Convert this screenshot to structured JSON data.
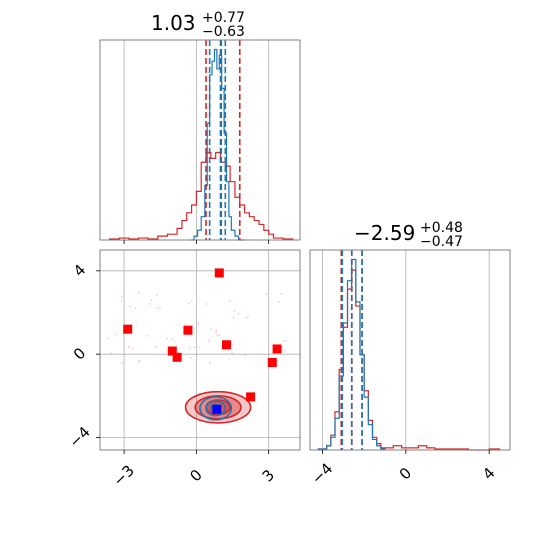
{
  "chart_data": [
    {
      "type": "histogram",
      "panel": "marginal-x",
      "title": {
        "median": "1.03",
        "plus": "+0.77",
        "minus": "−0.63"
      },
      "x_range": [
        -4.0,
        4.3
      ],
      "x_ticks": [
        -3,
        0,
        3
      ],
      "grid": true,
      "series": [
        {
          "color": "#1f77b4",
          "bin_edges": [
            -0.25,
            -0.1,
            0.05,
            0.2,
            0.35,
            0.45,
            0.55,
            0.65,
            0.75,
            0.85,
            0.95,
            1.05,
            1.15,
            1.25,
            1.35,
            1.45,
            1.6,
            1.75,
            1.9,
            2.05
          ],
          "counts": [
            0,
            0.02,
            0.05,
            0.12,
            0.28,
            0.6,
            0.85,
            0.92,
            0.98,
            0.88,
            0.95,
            0.78,
            0.55,
            0.3,
            0.12,
            0.05,
            0.02,
            0,
            0
          ],
          "quantile_lines": [
            0.55,
            1.0,
            1.2
          ]
        },
        {
          "color": "#d62728",
          "bin_edges": [
            -3.6,
            -3.2,
            -2.8,
            -2.4,
            -2.0,
            -1.6,
            -1.2,
            -0.8,
            -0.6,
            -0.4,
            -0.2,
            0.0,
            0.2,
            0.4,
            0.6,
            0.8,
            1.0,
            1.2,
            1.4,
            1.6,
            1.8,
            2.0,
            2.2,
            2.4,
            2.6,
            2.8,
            3.0,
            3.2,
            3.6,
            4.0
          ],
          "counts": [
            0.005,
            0.01,
            0.005,
            0.01,
            0.005,
            0.02,
            0.03,
            0.06,
            0.1,
            0.14,
            0.18,
            0.25,
            0.4,
            0.45,
            0.42,
            0.45,
            0.4,
            0.38,
            0.3,
            0.22,
            0.18,
            0.14,
            0.12,
            0.1,
            0.08,
            0.05,
            0.03,
            0.01,
            0.005
          ],
          "quantile_lines": [
            0.4,
            1.03,
            1.8
          ]
        }
      ]
    },
    {
      "type": "histogram",
      "panel": "marginal-y",
      "title": {
        "median": "−2.59",
        "plus": "+0.48",
        "minus": "−0.47"
      },
      "x_range": [
        -4.6,
        5.0
      ],
      "x_ticks": [
        -4,
        0,
        4
      ],
      "grid": true,
      "series": [
        {
          "color": "#1f77b4",
          "bin_edges": [
            -4.2,
            -3.8,
            -3.6,
            -3.4,
            -3.2,
            -3.0,
            -2.8,
            -2.6,
            -2.4,
            -2.2,
            -2.0,
            -1.8,
            -1.6,
            -1.4,
            -1.2,
            -1.0
          ],
          "counts": [
            0.005,
            0.02,
            0.06,
            0.15,
            0.35,
            0.6,
            0.8,
            0.9,
            0.7,
            0.45,
            0.25,
            0.12,
            0.05,
            0.02,
            0.005
          ],
          "quantile_lines": [
            -3.05,
            -2.6,
            -2.1
          ]
        },
        {
          "color": "#d62728",
          "bin_edges": [
            -4.2,
            -3.8,
            -3.6,
            -3.4,
            -3.2,
            -3.0,
            -2.8,
            -2.6,
            -2.4,
            -2.2,
            -2.0,
            -1.8,
            -1.6,
            -1.4,
            -1.2,
            -1.0,
            -0.6,
            -0.2,
            0.2,
            0.6,
            1.0,
            1.4,
            2.0,
            3.0,
            4.0,
            4.5
          ],
          "counts": [
            0.005,
            0.02,
            0.07,
            0.18,
            0.38,
            0.58,
            0.76,
            0.85,
            0.68,
            0.45,
            0.28,
            0.14,
            0.06,
            0.03,
            0.01,
            0.01,
            0.02,
            0.01,
            0.01,
            0.02,
            0.01,
            0.005,
            0.005,
            0.0,
            0.005
          ],
          "quantile_lines": [
            -3.1,
            -2.59,
            -2.1
          ]
        }
      ]
    },
    {
      "type": "scatter",
      "panel": "joint",
      "x_range": [
        -4.0,
        4.3
      ],
      "y_range": [
        -4.6,
        5.0
      ],
      "x_ticks": [
        -3,
        0,
        3
      ],
      "y_ticks": [
        -4,
        0,
        4
      ],
      "grid": true,
      "contours": [
        {
          "color": "#d62728",
          "center": [
            0.9,
            -2.55
          ],
          "radii": [
            [
              1.35,
              0.75
            ],
            [
              0.95,
              0.55
            ],
            [
              0.5,
              0.35
            ]
          ],
          "filled": true
        },
        {
          "color": "#1f77b4",
          "center": [
            0.8,
            -2.6
          ],
          "radii": [
            [
              0.65,
              0.55
            ],
            [
              0.4,
              0.35
            ],
            [
              0.2,
              0.2
            ]
          ],
          "filled": false
        }
      ],
      "red_points": [
        {
          "x": 0.95,
          "y": 3.9
        },
        {
          "x": -2.85,
          "y": 1.2
        },
        {
          "x": -0.35,
          "y": 1.15
        },
        {
          "x": -1.0,
          "y": 0.15
        },
        {
          "x": -0.8,
          "y": -0.15
        },
        {
          "x": 1.25,
          "y": 0.45
        },
        {
          "x": 3.35,
          "y": 0.25
        },
        {
          "x": 3.15,
          "y": -0.4
        },
        {
          "x": 2.25,
          "y": -2.05
        }
      ],
      "blue_point": {
        "x": 0.85,
        "y": -2.65
      }
    }
  ]
}
